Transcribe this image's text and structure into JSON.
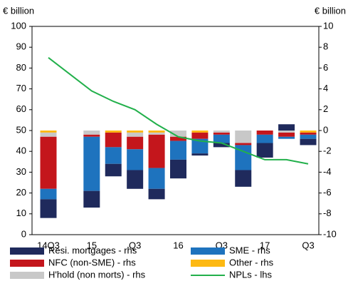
{
  "chart_data": {
    "type": "bar_line",
    "ylabel": "€ billion",
    "y2label": "€ billion",
    "categories": [
      "14Q3",
      null,
      "15",
      null,
      "Q3",
      null,
      "16",
      null,
      "Q3",
      null,
      "17",
      null,
      "Q3"
    ],
    "ylim": [
      0,
      100
    ],
    "yticks": [
      0,
      10,
      20,
      30,
      40,
      50,
      60,
      70,
      80,
      90,
      100
    ],
    "y2lim": [
      -10,
      10
    ],
    "y2ticks": [
      -10,
      -8,
      -6,
      -4,
      -2,
      0,
      2,
      4,
      6,
      8,
      10
    ],
    "series": [
      {
        "name": "Resi. mortgages - rhs",
        "color": "#1f2a5c",
        "type": "bar",
        "axis": "y2",
        "values": [
          -1.8,
          0,
          -1.6,
          -1.2,
          -1.8,
          -1.0,
          -1.8,
          -0.2,
          -0.4,
          -1.6,
          -1.4,
          0.6,
          -0.6
        ]
      },
      {
        "name": "NFC (non-SME) - rhs",
        "color": "#c4161c",
        "type": "bar",
        "axis": "y2",
        "values": [
          -5.0,
          0,
          -0.2,
          -1.4,
          -1.2,
          -3.2,
          -0.4,
          -0.6,
          -0.2,
          -0.2,
          -0.4,
          -0.4,
          -0.2
        ]
      },
      {
        "name": "H'hold (non morts) - rhs",
        "color": "#c8c8c8",
        "type": "bar",
        "axis": "y2",
        "values": [
          -0.4,
          0,
          -0.4,
          0,
          -0.4,
          -0.2,
          -0.6,
          0,
          -0.2,
          -1.2,
          0,
          -0.2,
          0
        ]
      },
      {
        "name": "SME - rhs",
        "color": "#1e73be",
        "type": "bar",
        "axis": "y2",
        "values": [
          -1.0,
          0,
          -5.2,
          -1.6,
          -2.0,
          -2.0,
          -1.8,
          -1.4,
          -0.8,
          -2.4,
          -0.8,
          -0.2,
          -0.4
        ]
      },
      {
        "name": "Other - rhs",
        "color": "#fdb913",
        "type": "bar",
        "axis": "y2",
        "values": [
          -0.2,
          0,
          0,
          -0.2,
          -0.2,
          -0.2,
          0,
          -0.2,
          0,
          0,
          0,
          0,
          -0.2
        ]
      },
      {
        "name": "NPLs - lhs",
        "color": "#22b04b",
        "type": "line",
        "values": [
          85,
          77,
          69,
          64,
          60,
          53,
          47,
          45,
          44,
          40,
          36,
          36,
          34
        ]
      }
    ]
  }
}
